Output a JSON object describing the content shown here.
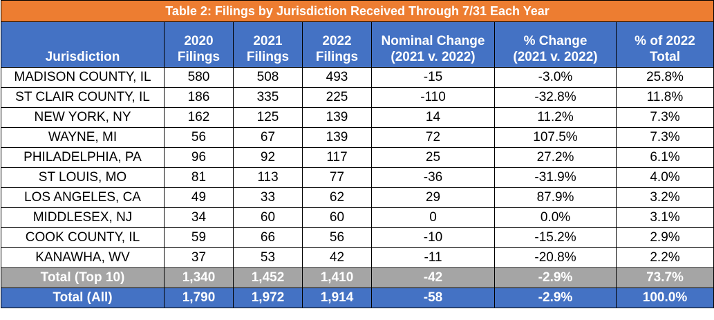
{
  "title": "Table 2: Filings by Jurisdiction Received Through 7/31 Each Year",
  "colors": {
    "title_bg": "#ED7D31",
    "header_bg": "#4472C4",
    "top10_bg": "#A5A5A5",
    "all_bg": "#4472C4"
  },
  "headers": [
    {
      "line1": "",
      "line2": "Jurisdiction"
    },
    {
      "line1": "2020",
      "line2": "Filings"
    },
    {
      "line1": "2021",
      "line2": "Filings"
    },
    {
      "line1": "2022",
      "line2": "Filings"
    },
    {
      "line1": "Nominal Change",
      "line2": "(2021 v. 2022)"
    },
    {
      "line1": "% Change",
      "line2": "(2021 v. 2022)"
    },
    {
      "line1": "% of 2022",
      "line2": "Total"
    }
  ],
  "rows": [
    [
      "MADISON COUNTY, IL",
      "580",
      "508",
      "493",
      "-15",
      "-3.0%",
      "25.8%"
    ],
    [
      "ST CLAIR COUNTY, IL",
      "186",
      "335",
      "225",
      "-110",
      "-32.8%",
      "11.8%"
    ],
    [
      "NEW YORK, NY",
      "162",
      "125",
      "139",
      "14",
      "11.2%",
      "7.3%"
    ],
    [
      "WAYNE, MI",
      "56",
      "67",
      "139",
      "72",
      "107.5%",
      "7.3%"
    ],
    [
      "PHILADELPHIA, PA",
      "96",
      "92",
      "117",
      "25",
      "27.2%",
      "6.1%"
    ],
    [
      "ST LOUIS, MO",
      "81",
      "113",
      "77",
      "-36",
      "-31.9%",
      "4.0%"
    ],
    [
      "LOS ANGELES, CA",
      "49",
      "33",
      "62",
      "29",
      "87.9%",
      "3.2%"
    ],
    [
      "MIDDLESEX, NJ",
      "34",
      "60",
      "60",
      "0",
      "0.0%",
      "3.1%"
    ],
    [
      "COOK COUNTY, IL",
      "59",
      "66",
      "56",
      "-10",
      "-15.2%",
      "2.9%"
    ],
    [
      "KANAWHA, WV",
      "37",
      "53",
      "42",
      "-11",
      "-20.8%",
      "2.2%"
    ]
  ],
  "total_top10": [
    "Total (Top 10)",
    "1,340",
    "1,452",
    "1,410",
    "-42",
    "-2.9%",
    "73.7%"
  ],
  "total_all": [
    "Total (All)",
    "1,790",
    "1,972",
    "1,914",
    "-58",
    "-2.9%",
    "100.0%"
  ]
}
